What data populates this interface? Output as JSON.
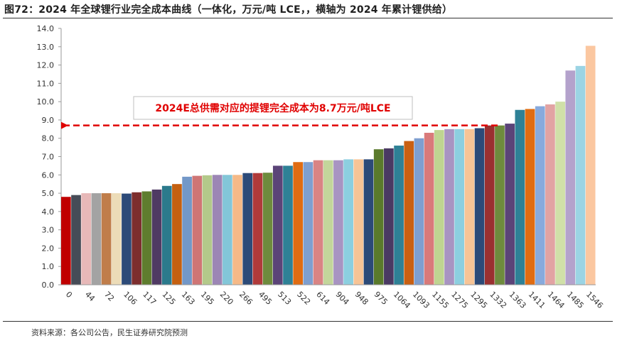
{
  "title": "图72：2024 年全球锂行业完全成本曲线（一体化，万元/吨 LCE，，横轴为 2024 年累计锂供给）",
  "source": "资料来源：各公司公告，民生证券研究院预测",
  "chart_data": {
    "type": "bar",
    "title": "2024 年全球锂行业完全成本曲线（一体化，万元/吨 LCE，，横轴为 2024 年累计锂供给）",
    "xlabel": "",
    "ylabel": "",
    "ylim": [
      0,
      14
    ],
    "ytick_step": 1,
    "grid": false,
    "x_tick_labels": [
      "0",
      "44",
      "72",
      "106",
      "117",
      "125",
      "163",
      "195",
      "220",
      "266",
      "495",
      "513",
      "522",
      "614",
      "904",
      "948",
      "975",
      "1064",
      "1093",
      "1155",
      "1275",
      "1295",
      "1332",
      "1363",
      "1411",
      "1464",
      "1485",
      "1546"
    ],
    "values": [
      4.8,
      4.9,
      5.0,
      5.0,
      5.0,
      5.0,
      4.98,
      5.05,
      5.1,
      5.2,
      5.4,
      5.5,
      5.9,
      5.95,
      5.98,
      6.0,
      6.0,
      6.0,
      6.1,
      6.1,
      6.12,
      6.5,
      6.5,
      6.7,
      6.7,
      6.8,
      6.8,
      6.8,
      6.85,
      6.85,
      6.85,
      7.4,
      7.45,
      7.6,
      7.85,
      8.0,
      8.3,
      8.45,
      8.5,
      8.5,
      8.5,
      8.55,
      8.7,
      8.7,
      8.8,
      9.55,
      9.6,
      9.75,
      9.85,
      10.0,
      11.7,
      11.95,
      13.05
    ],
    "colors": [
      "#c00000",
      "#464c57",
      "#e7b8b8",
      "#a3a3a3",
      "#c07d4a",
      "#ecdcb8",
      "#2c4a78",
      "#7d2e2e",
      "#5f7d2e",
      "#4f3a63",
      "#2b7a8c",
      "#c56010",
      "#7398c8",
      "#cf7575",
      "#b3c98a",
      "#9c86b5",
      "#83c6d8",
      "#f5b987",
      "#2c4a78",
      "#b03a3a",
      "#6e8b3d",
      "#5b4478",
      "#2e8196",
      "#e06c12",
      "#7e9fd0",
      "#d98484",
      "#c3d69b",
      "#a894c2",
      "#8ccfe0",
      "#f7c496",
      "#2c4a78",
      "#5a7a2c",
      "#4a3a63",
      "#2e8196",
      "#c96012",
      "#7e9fd0",
      "#d97a7a",
      "#bfd591",
      "#a894c2",
      "#8ccfe0",
      "#f7c496",
      "#2c4a78",
      "#9a3030",
      "#6e8b3d",
      "#5b4478",
      "#2e8196",
      "#e06c12",
      "#88aadd",
      "#e2a3a3",
      "#d0e0a8",
      "#b4a2cc",
      "#9bd4e4",
      "#fbc7a0"
    ],
    "annotation": {
      "text": "2024E总供需对应的提锂完全成本为8.7万元/吨LCE",
      "value": 8.7,
      "color": "#e00000"
    }
  }
}
